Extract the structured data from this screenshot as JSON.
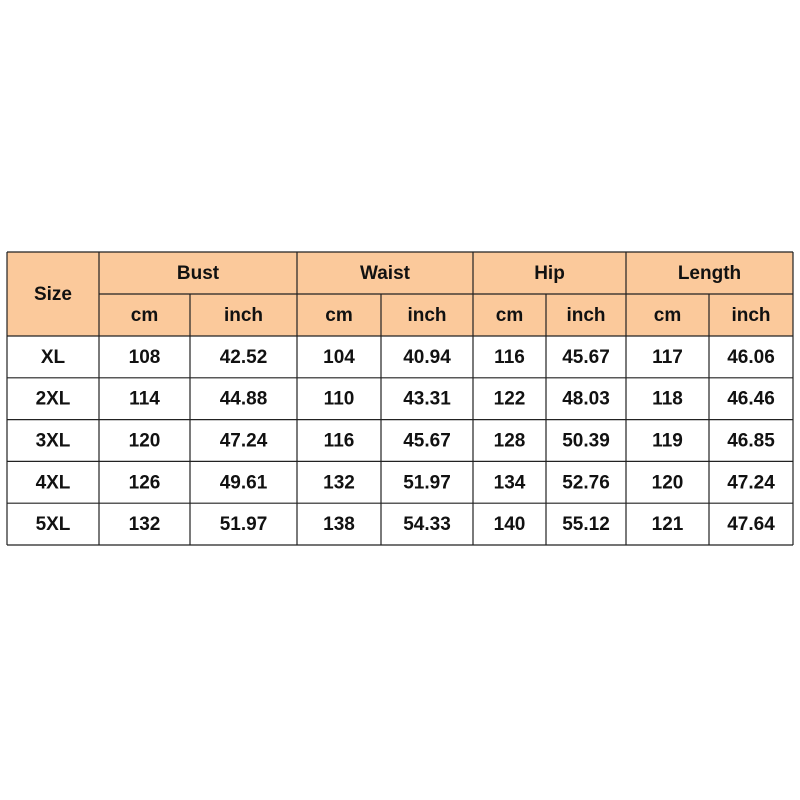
{
  "table": {
    "size_label": "Size",
    "groups": [
      {
        "label": "Bust",
        "units": [
          "cm",
          "inch"
        ]
      },
      {
        "label": "Waist",
        "units": [
          "cm",
          "inch"
        ]
      },
      {
        "label": "Hip",
        "units": [
          "cm",
          "inch"
        ]
      },
      {
        "label": "Length",
        "units": [
          "cm",
          "inch"
        ]
      }
    ],
    "rows": [
      [
        "XL",
        "108",
        "42.52",
        "104",
        "40.94",
        "116",
        "45.67",
        "117",
        "46.06"
      ],
      [
        "2XL",
        "114",
        "44.88",
        "110",
        "43.31",
        "122",
        "48.03",
        "118",
        "46.46"
      ],
      [
        "3XL",
        "120",
        "47.24",
        "116",
        "45.67",
        "128",
        "50.39",
        "119",
        "46.85"
      ],
      [
        "4XL",
        "126",
        "49.61",
        "132",
        "51.97",
        "134",
        "52.76",
        "120",
        "47.24"
      ],
      [
        "5XL",
        "132",
        "51.97",
        "138",
        "54.33",
        "140",
        "55.12",
        "121",
        "47.64"
      ]
    ]
  }
}
